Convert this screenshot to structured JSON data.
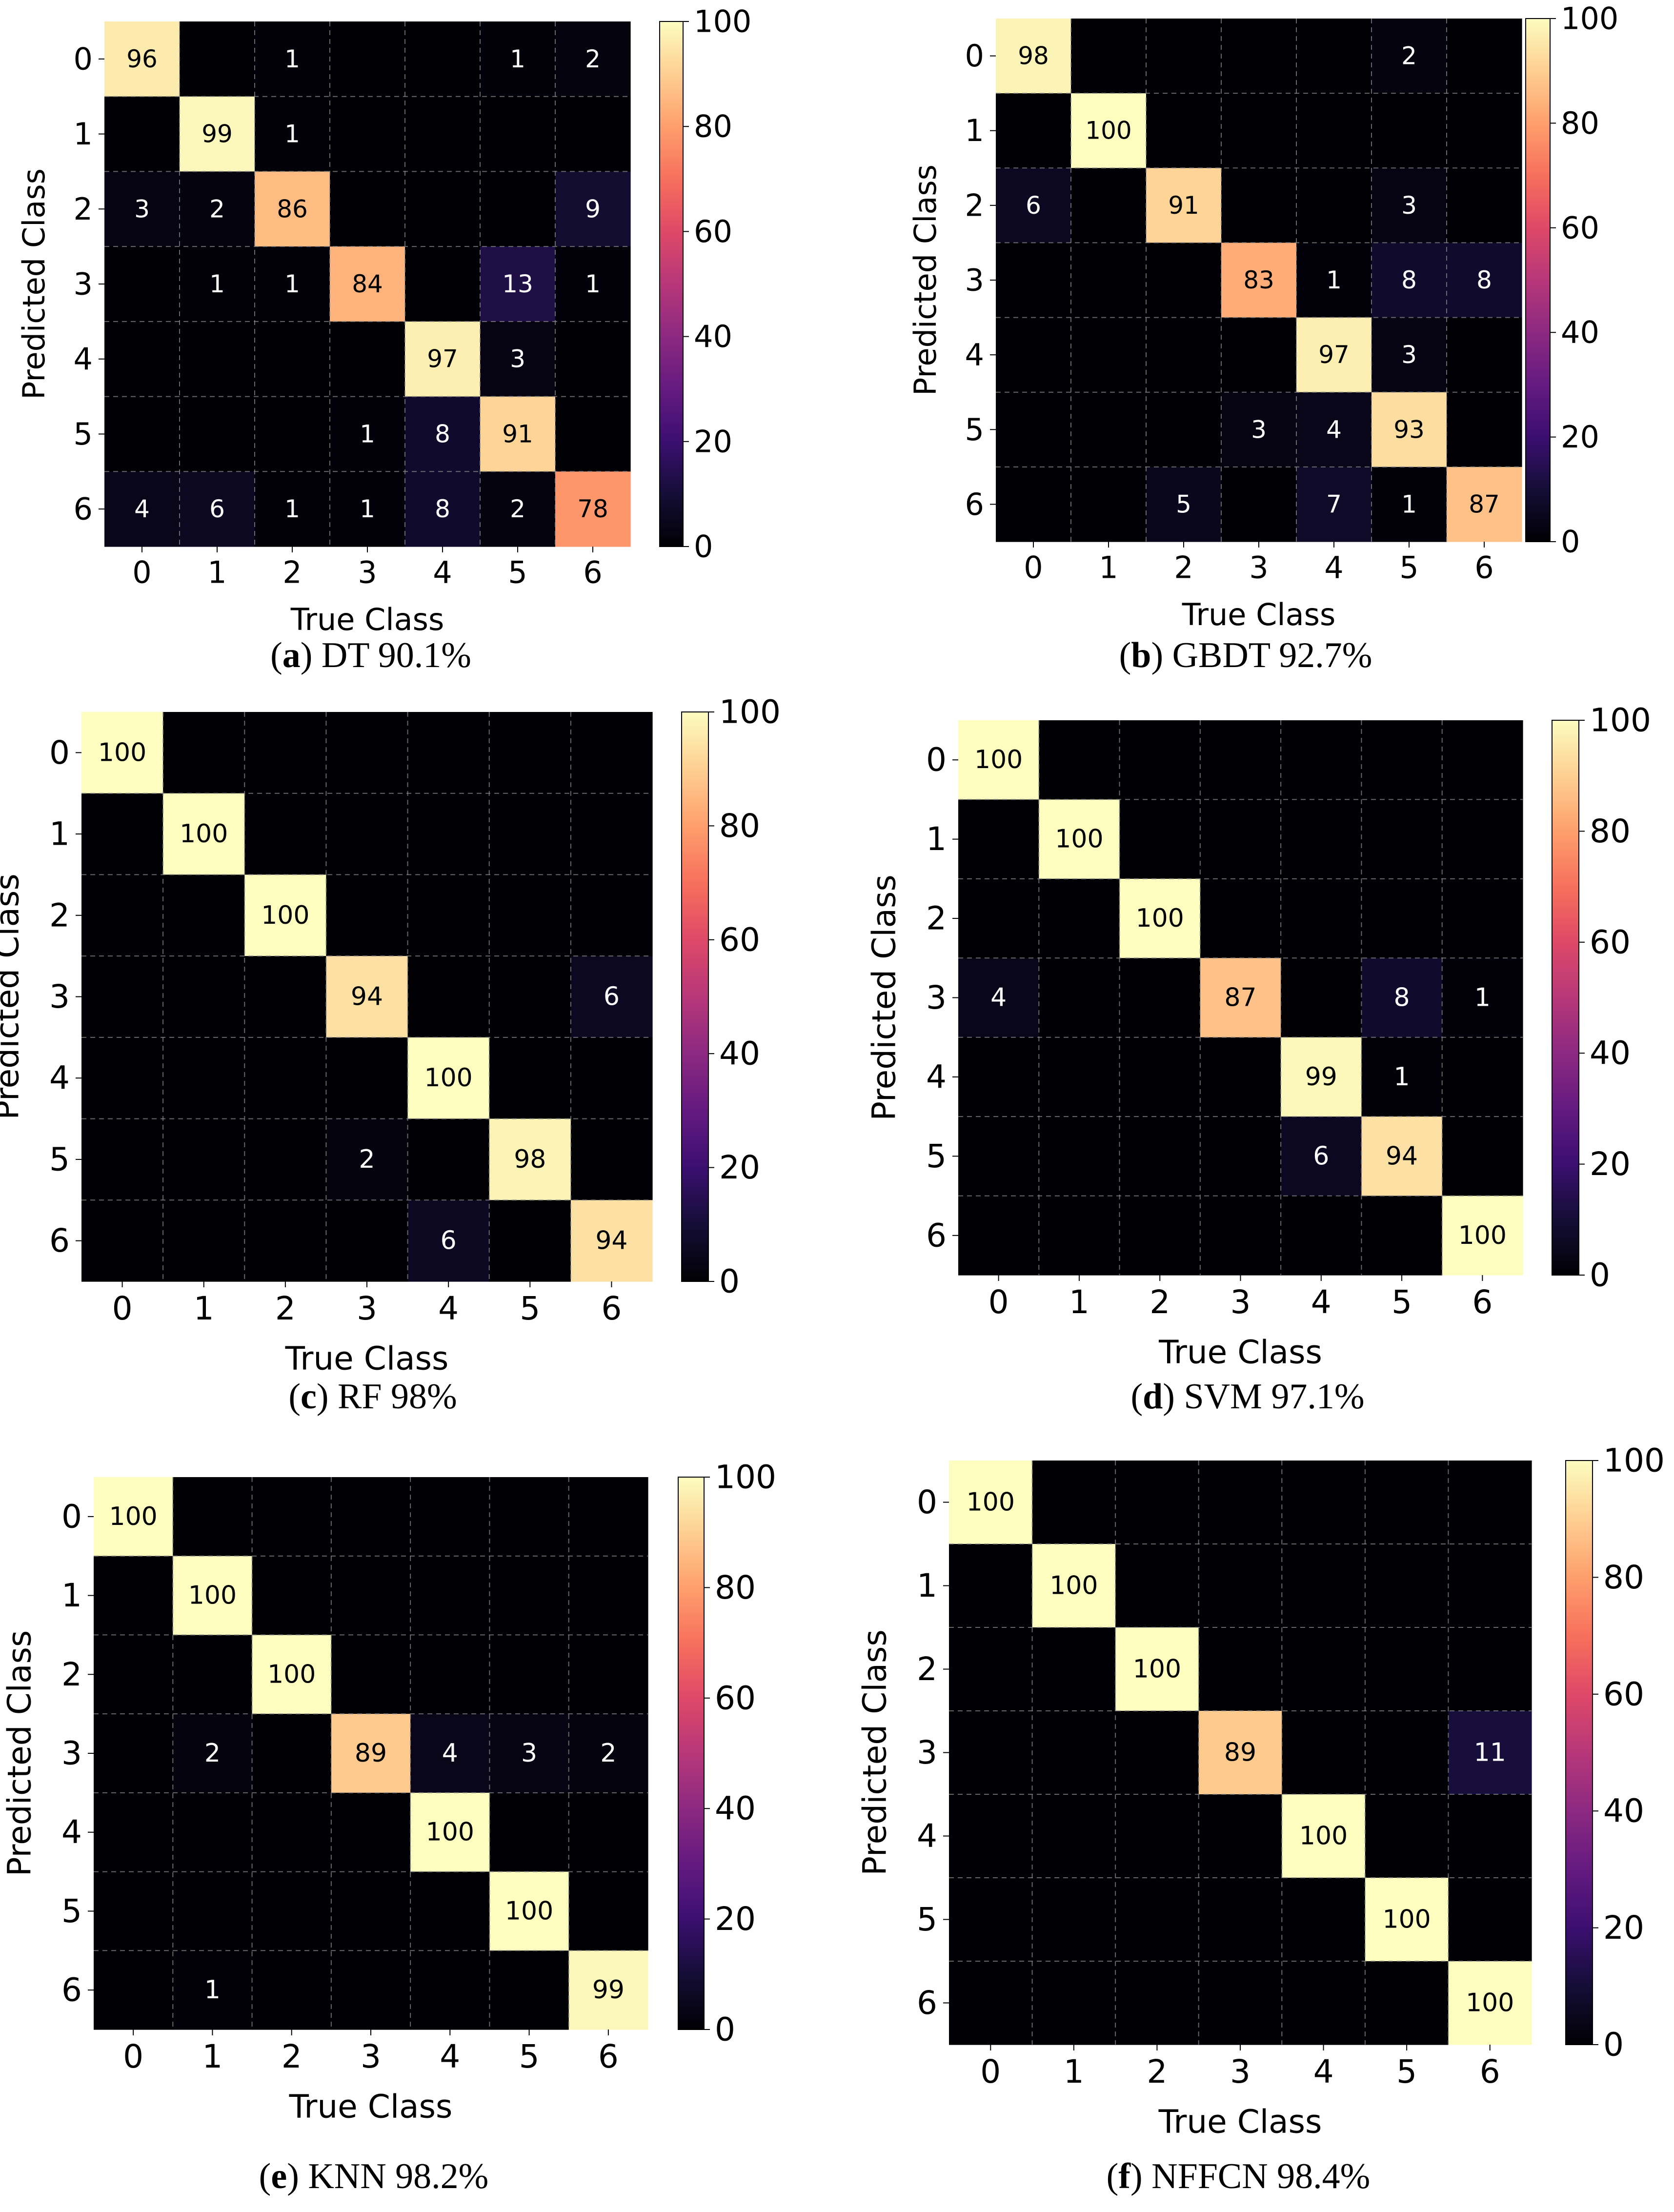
{
  "figure": {
    "colorbar_ticks": [
      0,
      20,
      40,
      60,
      80,
      100
    ],
    "colorbar_range": [
      0,
      100
    ],
    "colormap": "magma"
  },
  "chart_data": [
    {
      "type": "heatmap",
      "panel_label": "a",
      "caption": "DT 90.1%",
      "xlabel": "True Class",
      "ylabel": "Predicted Class",
      "x_ticks": [
        "0",
        "1",
        "2",
        "3",
        "4",
        "5",
        "6"
      ],
      "y_ticks": [
        "0",
        "1",
        "2",
        "3",
        "4",
        "5",
        "6"
      ],
      "zlim": [
        0,
        100
      ],
      "matrix": [
        [
          96,
          0,
          1,
          0,
          0,
          1,
          2
        ],
        [
          0,
          99,
          1,
          0,
          0,
          0,
          0
        ],
        [
          3,
          2,
          86,
          0,
          0,
          0,
          9
        ],
        [
          0,
          1,
          1,
          84,
          0,
          13,
          1
        ],
        [
          0,
          0,
          0,
          0,
          97,
          3,
          0
        ],
        [
          0,
          0,
          0,
          1,
          8,
          91,
          0
        ],
        [
          4,
          6,
          1,
          1,
          8,
          2,
          78
        ]
      ]
    },
    {
      "type": "heatmap",
      "panel_label": "b",
      "caption": "GBDT 92.7%",
      "xlabel": "True Class",
      "ylabel": "Predicted Class",
      "x_ticks": [
        "0",
        "1",
        "2",
        "3",
        "4",
        "5",
        "6"
      ],
      "y_ticks": [
        "0",
        "1",
        "2",
        "3",
        "4",
        "5",
        "6"
      ],
      "zlim": [
        0,
        100
      ],
      "matrix": [
        [
          98,
          0,
          0,
          0,
          0,
          2,
          0
        ],
        [
          0,
          100,
          0,
          0,
          0,
          0,
          0
        ],
        [
          6,
          0,
          91,
          0,
          0,
          3,
          0
        ],
        [
          0,
          0,
          0,
          83,
          1,
          8,
          8
        ],
        [
          0,
          0,
          0,
          0,
          97,
          3,
          0
        ],
        [
          0,
          0,
          0,
          3,
          4,
          93,
          0
        ],
        [
          0,
          0,
          5,
          0,
          7,
          1,
          87
        ]
      ]
    },
    {
      "type": "heatmap",
      "panel_label": "c",
      "caption": "RF 98%",
      "xlabel": "True Class",
      "ylabel": "Predicted Class",
      "x_ticks": [
        "0",
        "1",
        "2",
        "3",
        "4",
        "5",
        "6"
      ],
      "y_ticks": [
        "0",
        "1",
        "2",
        "3",
        "4",
        "5",
        "6"
      ],
      "zlim": [
        0,
        100
      ],
      "matrix": [
        [
          100,
          0,
          0,
          0,
          0,
          0,
          0
        ],
        [
          0,
          100,
          0,
          0,
          0,
          0,
          0
        ],
        [
          0,
          0,
          100,
          0,
          0,
          0,
          0
        ],
        [
          0,
          0,
          0,
          94,
          0,
          0,
          6
        ],
        [
          0,
          0,
          0,
          0,
          100,
          0,
          0
        ],
        [
          0,
          0,
          0,
          2,
          0,
          98,
          0
        ],
        [
          0,
          0,
          0,
          0,
          6,
          0,
          94
        ]
      ]
    },
    {
      "type": "heatmap",
      "panel_label": "d",
      "caption": "SVM 97.1%",
      "xlabel": "True Class",
      "ylabel": "Predicted Class",
      "x_ticks": [
        "0",
        "1",
        "2",
        "3",
        "4",
        "5",
        "6"
      ],
      "y_ticks": [
        "0",
        "1",
        "2",
        "3",
        "4",
        "5",
        "6"
      ],
      "zlim": [
        0,
        100
      ],
      "matrix": [
        [
          100,
          0,
          0,
          0,
          0,
          0,
          0
        ],
        [
          0,
          100,
          0,
          0,
          0,
          0,
          0
        ],
        [
          0,
          0,
          100,
          0,
          0,
          0,
          0
        ],
        [
          4,
          0,
          0,
          87,
          0,
          8,
          1
        ],
        [
          0,
          0,
          0,
          0,
          99,
          1,
          0
        ],
        [
          0,
          0,
          0,
          0,
          6,
          94,
          0
        ],
        [
          0,
          0,
          0,
          0,
          0,
          0,
          100
        ]
      ]
    },
    {
      "type": "heatmap",
      "panel_label": "e",
      "caption": "KNN 98.2%",
      "xlabel": "True Class",
      "ylabel": "Predicted Class",
      "x_ticks": [
        "0",
        "1",
        "2",
        "3",
        "4",
        "5",
        "6"
      ],
      "y_ticks": [
        "0",
        "1",
        "2",
        "3",
        "4",
        "5",
        "6"
      ],
      "zlim": [
        0,
        100
      ],
      "matrix": [
        [
          100,
          0,
          0,
          0,
          0,
          0,
          0
        ],
        [
          0,
          100,
          0,
          0,
          0,
          0,
          0
        ],
        [
          0,
          0,
          100,
          0,
          0,
          0,
          0
        ],
        [
          0,
          2,
          0,
          89,
          4,
          3,
          2
        ],
        [
          0,
          0,
          0,
          0,
          100,
          0,
          0
        ],
        [
          0,
          0,
          0,
          0,
          0,
          100,
          0
        ],
        [
          0,
          1,
          0,
          0,
          0,
          0,
          99
        ]
      ]
    },
    {
      "type": "heatmap",
      "panel_label": "f",
      "caption": "NFFCN 98.4%",
      "xlabel": "True Class",
      "ylabel": "Predicted Class",
      "x_ticks": [
        "0",
        "1",
        "2",
        "3",
        "4",
        "5",
        "6"
      ],
      "y_ticks": [
        "0",
        "1",
        "2",
        "3",
        "4",
        "5",
        "6"
      ],
      "zlim": [
        0,
        100
      ],
      "matrix": [
        [
          100,
          0,
          0,
          0,
          0,
          0,
          0
        ],
        [
          0,
          100,
          0,
          0,
          0,
          0,
          0
        ],
        [
          0,
          0,
          100,
          0,
          0,
          0,
          0
        ],
        [
          0,
          0,
          0,
          89,
          0,
          0,
          11
        ],
        [
          0,
          0,
          0,
          0,
          100,
          0,
          0
        ],
        [
          0,
          0,
          0,
          0,
          0,
          100,
          0
        ],
        [
          0,
          0,
          0,
          0,
          0,
          0,
          100
        ]
      ]
    }
  ]
}
